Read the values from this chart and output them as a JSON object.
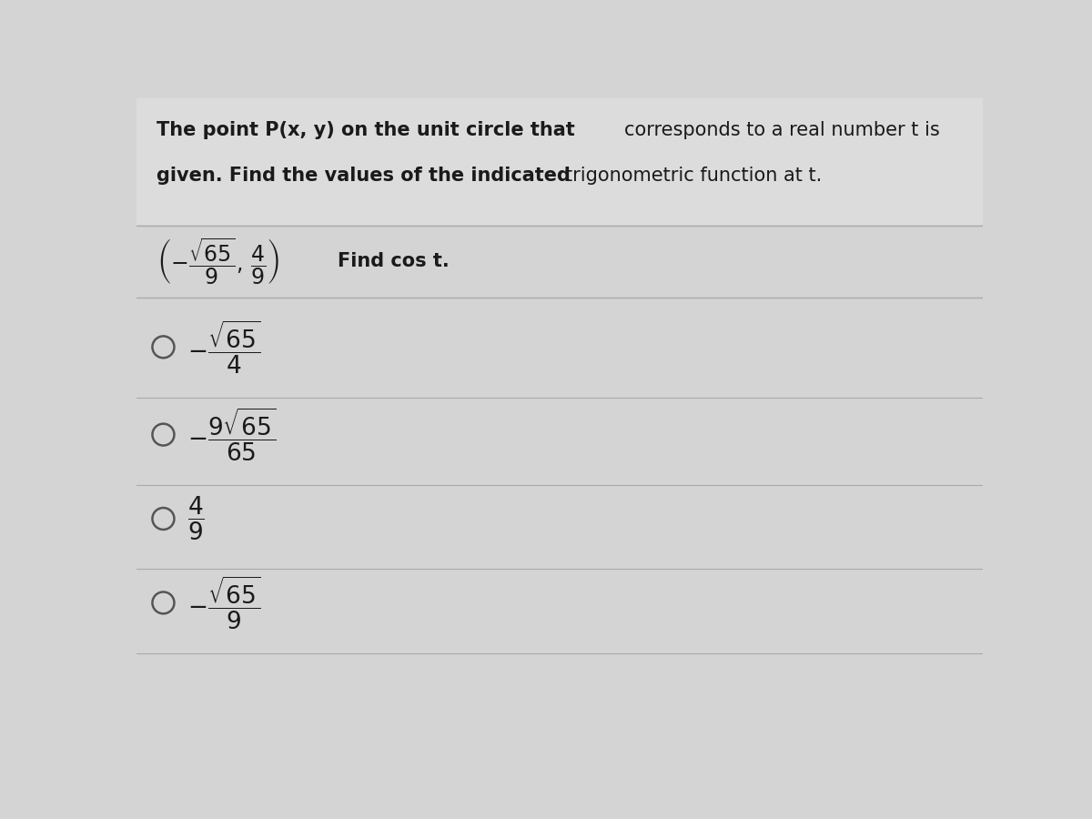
{
  "bg_color": "#d4d4d4",
  "header_bg": "#e0e0e0",
  "text_color": "#1a1a1a",
  "divider_color": "#aaaaaa",
  "circle_color": "#555555",
  "figsize": [
    12,
    9
  ],
  "dpi": 100,
  "title_bold_1": "The point P(x, y) on the unit circle that ",
  "title_normal_1": "corresponds to a real number t is",
  "title_bold_2": "given. Find the values of the indicated ",
  "title_normal_2": "trigonometric function at t.",
  "option_expressions": [
    "$-\\dfrac{\\sqrt{65}}{4}$",
    "$-\\dfrac{9\\sqrt{65}}{65}$",
    "$\\dfrac{4}{9}$",
    "$-\\dfrac{\\sqrt{65}}{9}$"
  ]
}
